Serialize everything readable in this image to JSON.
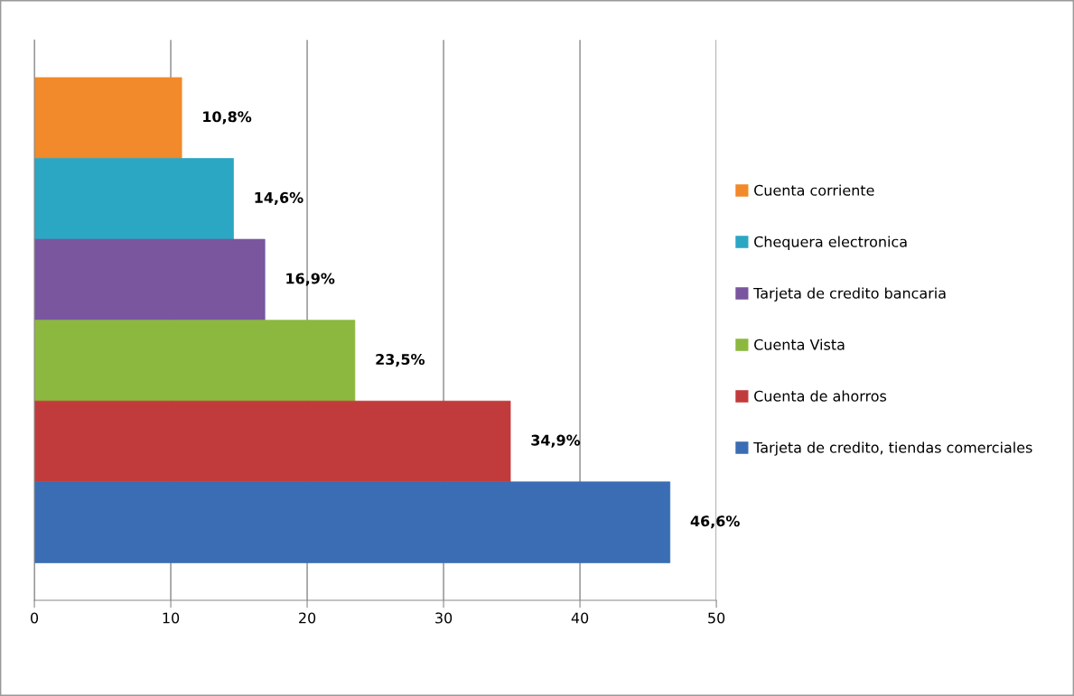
{
  "chart_data": {
    "type": "bar",
    "orientation": "horizontal",
    "categories": [
      null
    ],
    "series": [
      {
        "name": "Cuenta corriente",
        "color": "#f2892a",
        "values": [
          10.8
        ],
        "value_labels": [
          "10,8%"
        ]
      },
      {
        "name": "Chequera electronica",
        "color": "#2ba6c3",
        "values": [
          14.6
        ],
        "value_labels": [
          "14,6%"
        ]
      },
      {
        "name": "Tarjeta de credito bancaria",
        "color": "#7a569f",
        "values": [
          16.9
        ],
        "value_labels": [
          "16,9%"
        ]
      },
      {
        "name": "Cuenta Vista",
        "color": "#8db83f",
        "values": [
          23.5
        ],
        "value_labels": [
          "23,5%"
        ]
      },
      {
        "name": "Cuenta de ahorros",
        "color": "#c13b3c",
        "values": [
          34.9
        ],
        "value_labels": [
          "34,9%"
        ]
      },
      {
        "name": "Tarjeta de credito, tiendas comerciales",
        "color": "#3a6db4",
        "values": [
          46.6
        ],
        "value_labels": [
          "46,6%"
        ]
      }
    ],
    "xlim": [
      0,
      50
    ],
    "xticks": [
      0,
      10,
      20,
      30,
      40,
      50
    ],
    "grid": "x",
    "legend": "right"
  }
}
